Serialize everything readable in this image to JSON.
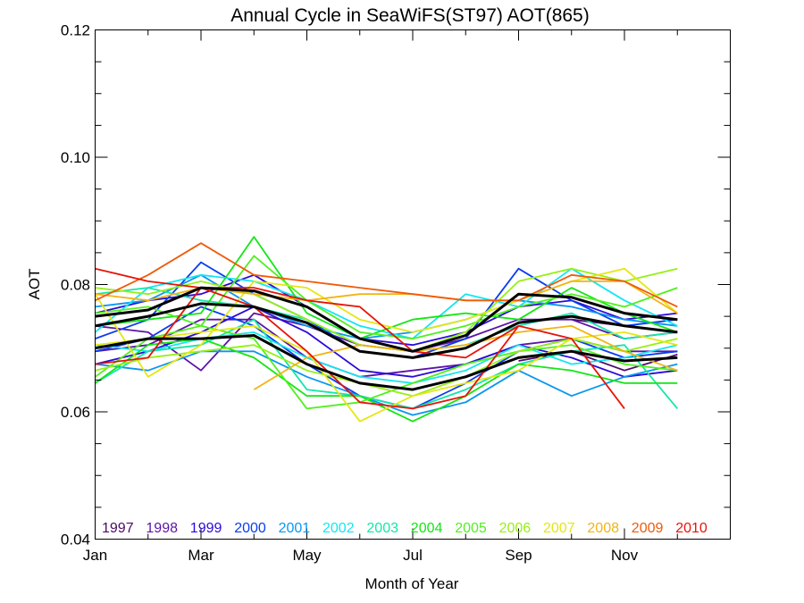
{
  "chart_data": {
    "type": "line",
    "title": "Annual Cycle in SeaWiFS(ST97) AOT(865)",
    "xlabel": "Month of Year",
    "ylabel": "AOT",
    "xlim": [
      1,
      13
    ],
    "ylim": [
      0.04,
      0.12
    ],
    "x_ticks": [
      {
        "x": 1,
        "label": "Jan"
      },
      {
        "x": 3,
        "label": "Mar"
      },
      {
        "x": 5,
        "label": "May"
      },
      {
        "x": 7,
        "label": "Jul"
      },
      {
        "x": 9,
        "label": "Sep"
      },
      {
        "x": 11,
        "label": "Nov"
      }
    ],
    "y_ticks": [
      {
        "y": 0.04,
        "label": "0.04"
      },
      {
        "y": 0.06,
        "label": "0.06"
      },
      {
        "y": 0.08,
        "label": "0.08"
      },
      {
        "y": 0.1,
        "label": "0.10"
      },
      {
        "y": 0.12,
        "label": "0.12"
      }
    ],
    "legend_position": "bottom",
    "series": [
      {
        "name": "1997",
        "color": "#4b0a68",
        "group": [
          {
            "x": [
              10,
              11,
              12
            ],
            "y": [
              0.0745,
              0.0735,
              0.0725
            ]
          },
          {
            "x": [
              9,
              10,
              11,
              12
            ],
            "y": [
              0.068,
              0.0695,
              0.0665,
              0.069
            ]
          }
        ]
      },
      {
        "name": "1998",
        "color": "#5a14a8",
        "group": [
          {
            "x": [
              1,
              2,
              3,
              4,
              5,
              6,
              7,
              8,
              9,
              10,
              11,
              12
            ],
            "y": [
              0.0735,
              0.0725,
              0.0665,
              0.0755,
              0.0735,
              0.0705,
              0.0695,
              0.0715,
              0.0745,
              0.0745,
              0.0715,
              0.0725
            ]
          },
          {
            "x": [
              1,
              2,
              3,
              4,
              5,
              6,
              7,
              8,
              9,
              10,
              11,
              12
            ],
            "y": [
              0.0695,
              0.0705,
              0.0745,
              0.0745,
              0.0685,
              0.0655,
              0.0665,
              0.0675,
              0.0705,
              0.0715,
              0.0695,
              0.0695
            ]
          }
        ]
      },
      {
        "name": "1999",
        "color": "#2a0ad8",
        "group": [
          {
            "x": [
              1,
              2,
              3,
              4,
              5,
              6,
              7,
              8,
              9,
              10,
              11,
              12
            ],
            "y": [
              0.0755,
              0.0775,
              0.0785,
              0.0815,
              0.0765,
              0.0715,
              0.0705,
              0.0725,
              0.0765,
              0.0775,
              0.0745,
              0.0755
            ]
          },
          {
            "x": [
              1,
              2,
              3,
              4,
              5,
              6,
              7,
              8,
              9,
              10,
              11,
              12
            ],
            "y": [
              0.0675,
              0.0695,
              0.0725,
              0.0765,
              0.0725,
              0.0665,
              0.0655,
              0.0675,
              0.0705,
              0.0685,
              0.0655,
              0.0665
            ]
          }
        ]
      },
      {
        "name": "2000",
        "color": "#0a3cf0",
        "group": [
          {
            "x": [
              1,
              2,
              3,
              4,
              5,
              6,
              7,
              8,
              9,
              10,
              11,
              12
            ],
            "y": [
              0.0715,
              0.0745,
              0.0835,
              0.0785,
              0.0745,
              0.0695,
              0.0685,
              0.0715,
              0.0825,
              0.0775,
              0.0735,
              0.0745
            ]
          },
          {
            "x": [
              1,
              2,
              3,
              4,
              5,
              6,
              7,
              8,
              9,
              10,
              11,
              12
            ],
            "y": [
              0.0695,
              0.0715,
              0.0765,
              0.0735,
              0.0675,
              0.0625,
              0.0605,
              0.0645,
              0.0695,
              0.0715,
              0.0685,
              0.0695
            ]
          }
        ]
      },
      {
        "name": "2001",
        "color": "#0a96f0",
        "group": [
          {
            "x": [
              1,
              2,
              3,
              4,
              5,
              6,
              7,
              8,
              9,
              10,
              11,
              12
            ],
            "y": [
              0.0765,
              0.0775,
              0.0815,
              0.0765,
              0.0735,
              0.0715,
              0.0725,
              0.0745,
              0.0775,
              0.0765,
              0.0745,
              0.0735
            ]
          },
          {
            "x": [
              1,
              2,
              3,
              4,
              5,
              6,
              7,
              8,
              9,
              10,
              11,
              12
            ],
            "y": [
              0.0675,
              0.0665,
              0.0695,
              0.0695,
              0.0655,
              0.0625,
              0.0595,
              0.0615,
              0.0665,
              0.0625,
              0.0655,
              0.0675
            ]
          }
        ]
      },
      {
        "name": "2002",
        "color": "#14e6f0",
        "group": [
          {
            "x": [
              1,
              2,
              3,
              4,
              5,
              6,
              7,
              8,
              9,
              10,
              11,
              12
            ],
            "y": [
              0.0725,
              0.0795,
              0.0815,
              0.0805,
              0.0775,
              0.0735,
              0.0715,
              0.0785,
              0.0765,
              0.0825,
              0.0775,
              0.0735
            ]
          },
          {
            "x": [
              1,
              2,
              3,
              4,
              5,
              6,
              7,
              8,
              9,
              10,
              11,
              12
            ],
            "y": [
              0.0705,
              0.0695,
              0.0715,
              0.0725,
              0.0685,
              0.0655,
              0.0645,
              0.0665,
              0.0705,
              0.0675,
              0.0685,
              0.0705
            ]
          }
        ]
      },
      {
        "name": "2003",
        "color": "#14e6aa",
        "group": [
          {
            "x": [
              1,
              2,
              3,
              4,
              5,
              6,
              7,
              8,
              9,
              10,
              11,
              12
            ],
            "y": [
              0.0785,
              0.0795,
              0.0775,
              0.0765,
              0.0745,
              0.0705,
              0.0695,
              0.0705,
              0.0735,
              0.0755,
              0.0715,
              0.0725
            ]
          },
          {
            "x": [
              1,
              2,
              3,
              4,
              5,
              6,
              7,
              8,
              9,
              10,
              11,
              12
            ],
            "y": [
              0.0645,
              0.0695,
              0.0705,
              0.0745,
              0.0635,
              0.0625,
              0.0605,
              0.0635,
              0.0675,
              0.0695,
              0.0705,
              0.0605
            ]
          }
        ]
      },
      {
        "name": "2004",
        "color": "#14e614",
        "group": [
          {
            "x": [
              1,
              2,
              3,
              4,
              5,
              6,
              7,
              8,
              9,
              10,
              11,
              12
            ],
            "y": [
              0.0735,
              0.0745,
              0.0755,
              0.0875,
              0.0755,
              0.0715,
              0.0745,
              0.0755,
              0.0745,
              0.0795,
              0.0755,
              0.0725
            ]
          },
          {
            "x": [
              1,
              2,
              3,
              4,
              5,
              6,
              7,
              8,
              9,
              10,
              11,
              12
            ],
            "y": [
              0.0645,
              0.0705,
              0.0715,
              0.0685,
              0.0625,
              0.0625,
              0.0585,
              0.0625,
              0.0675,
              0.0665,
              0.0645,
              0.0645
            ]
          }
        ]
      },
      {
        "name": "2005",
        "color": "#50f01e",
        "group": [
          {
            "x": [
              1,
              2,
              3,
              4,
              5,
              6,
              7,
              8,
              9,
              10,
              11,
              12
            ],
            "y": [
              0.0755,
              0.0765,
              0.0735,
              0.0845,
              0.0775,
              0.0725,
              0.0715,
              0.0735,
              0.0765,
              0.0785,
              0.0765,
              0.0795
            ]
          },
          {
            "x": [
              1,
              2,
              3,
              4,
              5,
              6,
              7,
              8,
              9,
              10,
              11,
              12
            ],
            "y": [
              0.0655,
              0.0715,
              0.0735,
              0.0715,
              0.0605,
              0.0615,
              0.0645,
              0.0675,
              0.0695,
              0.0705,
              0.0675,
              0.0665
            ]
          }
        ]
      },
      {
        "name": "2006",
        "color": "#96f014",
        "group": [
          {
            "x": [
              1,
              2,
              3,
              4,
              5,
              6,
              7,
              8,
              9,
              10,
              11,
              12
            ],
            "y": [
              0.0795,
              0.0785,
              0.0805,
              0.0785,
              0.0745,
              0.0705,
              0.0695,
              0.0725,
              0.0805,
              0.0825,
              0.0805,
              0.0825
            ]
          },
          {
            "x": [
              1,
              2,
              3,
              4,
              5,
              6,
              7,
              8,
              9,
              10,
              11,
              12
            ],
            "y": [
              0.0665,
              0.0685,
              0.0695,
              0.0705,
              0.0665,
              0.0645,
              0.0625,
              0.0655,
              0.0695,
              0.0715,
              0.0695,
              0.0715
            ]
          }
        ]
      },
      {
        "name": "2007",
        "color": "#e6e614",
        "group": [
          {
            "x": [
              1,
              2,
              3,
              4,
              5,
              6,
              7,
              8,
              9,
              10,
              11,
              12
            ],
            "y": [
              0.0785,
              0.0655,
              0.0705,
              0.0805,
              0.0795,
              0.0745,
              0.0725,
              0.0745,
              0.0775,
              0.0805,
              0.0825,
              0.0755
            ]
          },
          {
            "x": [
              1,
              2,
              3,
              4,
              5,
              6,
              7,
              8,
              9,
              10,
              11,
              12
            ],
            "y": [
              0.0705,
              0.0715,
              0.0725,
              0.0735,
              0.0695,
              0.0585,
              0.0625,
              0.0645,
              0.0665,
              0.0715,
              0.0725,
              0.0705
            ]
          }
        ]
      },
      {
        "name": "2008",
        "color": "#f0b414",
        "group": [
          {
            "x": [
              1,
              2,
              3,
              4,
              5,
              6,
              7,
              8,
              9,
              10,
              11,
              12
            ],
            "y": [
              0.0785,
              0.0775,
              0.0795,
              0.0785,
              0.0775,
              0.0785,
              0.0785,
              0.0775,
              0.0775,
              0.0805,
              0.0805,
              0.0755
            ]
          },
          {
            "x": [
              4,
              5,
              6,
              7,
              8,
              9,
              10,
              11,
              12
            ],
            "y": [
              0.0635,
              0.0685,
              0.0705,
              0.0695,
              0.0705,
              0.0725,
              0.0735,
              0.0695,
              0.0665
            ]
          }
        ]
      },
      {
        "name": "2009",
        "color": "#f05a0a",
        "group": [
          {
            "x": [
              1,
              2,
              3,
              4,
              5,
              6,
              7,
              8,
              9,
              10,
              11,
              12
            ],
            "y": [
              0.0775,
              0.0815,
              0.0865,
              0.0815,
              0.0805,
              0.0795,
              0.0785,
              0.0775,
              0.0775,
              0.0815,
              0.0805,
              0.0765
            ]
          }
        ]
      },
      {
        "name": "2010",
        "color": "#e6140a",
        "group": [
          {
            "x": [
              1,
              2,
              3,
              4,
              5,
              6,
              7,
              8,
              9,
              10,
              11
            ],
            "y": [
              0.0825,
              0.0805,
              0.0795,
              0.0795,
              0.0775,
              0.0765,
              0.0695,
              0.0685,
              0.0735,
              0.0715,
              0.0605
            ]
          },
          {
            "x": [
              1,
              2,
              3,
              4,
              5,
              6,
              7,
              8,
              9
            ],
            "y": [
              0.0675,
              0.0685,
              0.0795,
              0.0765,
              0.0695,
              0.0615,
              0.0605,
              0.0625,
              0.0735
            ]
          }
        ]
      }
    ],
    "mean_lines": {
      "color": "#000000",
      "lines": [
        {
          "x": [
            1,
            2,
            3,
            4,
            5,
            6,
            7,
            8,
            9,
            10,
            11,
            12
          ],
          "y": [
            0.075,
            0.076,
            0.0795,
            0.079,
            0.0765,
            0.0715,
            0.0695,
            0.072,
            0.0785,
            0.078,
            0.0755,
            0.0745
          ]
        },
        {
          "x": [
            1,
            2,
            3,
            4,
            5,
            6,
            7,
            8,
            9,
            10,
            11,
            12
          ],
          "y": [
            0.0735,
            0.075,
            0.077,
            0.0765,
            0.074,
            0.0695,
            0.0685,
            0.07,
            0.074,
            0.075,
            0.0735,
            0.0725
          ]
        },
        {
          "x": [
            1,
            2,
            3,
            4,
            5,
            6,
            7,
            8,
            9,
            10,
            11,
            12
          ],
          "y": [
            0.07,
            0.0715,
            0.0715,
            0.072,
            0.0675,
            0.0645,
            0.0635,
            0.0655,
            0.0685,
            0.0695,
            0.068,
            0.0685
          ]
        }
      ]
    }
  }
}
